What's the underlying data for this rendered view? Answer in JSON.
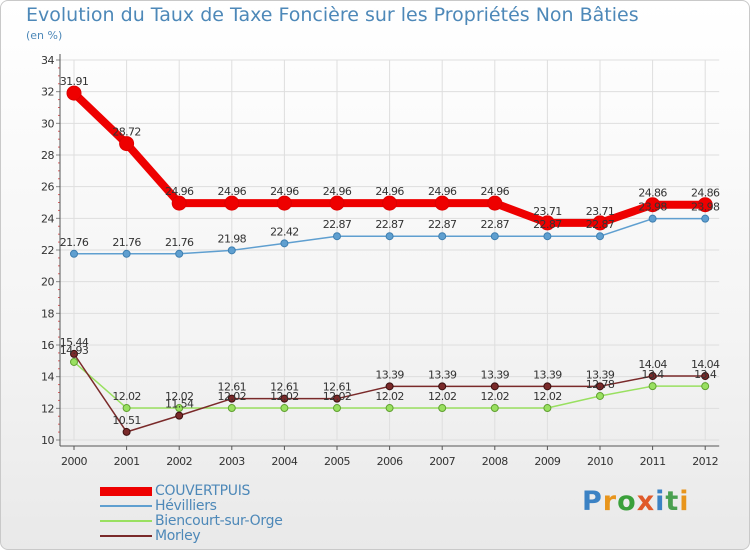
{
  "title": "Evolution du Taux de Taxe Foncière sur les Propriétés Non Bâties",
  "subtitle": "(en %)",
  "logo": {
    "text": "Proxiti"
  },
  "chart_data": {
    "type": "line",
    "x": [
      "2000",
      "2001",
      "2002",
      "2003",
      "2004",
      "2005",
      "2006",
      "2007",
      "2008",
      "2009",
      "2010",
      "2011",
      "2012"
    ],
    "ylim": [
      10,
      34
    ],
    "yticks": [
      10,
      12,
      14,
      16,
      18,
      20,
      22,
      24,
      26,
      28,
      30,
      32,
      34
    ],
    "grid": true,
    "legend_position": "bottom-left",
    "series": [
      {
        "name": "COUVERTPUIS",
        "color": "#ee0000",
        "values": [
          31.91,
          28.72,
          24.96,
          24.96,
          24.96,
          24.96,
          24.96,
          24.96,
          24.96,
          23.71,
          23.71,
          24.86,
          24.86
        ],
        "labels": [
          "31.91",
          "28.72",
          "24.96",
          "24.96",
          "24.96",
          "24.96",
          "24.96",
          "24.96",
          "24.96",
          "23.71",
          "23.71",
          "24.86",
          "24.86"
        ]
      },
      {
        "name": "Hévilliers",
        "color": "#5f9fd0",
        "values": [
          21.76,
          21.76,
          21.76,
          21.98,
          22.42,
          22.87,
          22.87,
          22.87,
          22.87,
          22.87,
          22.87,
          23.98,
          23.98
        ],
        "labels": [
          "21.76",
          "21.76",
          "21.76",
          "21.98",
          "22.42",
          "22.87",
          "22.87",
          "22.87",
          "22.87",
          "22.87",
          "22.87",
          "23.98",
          "23.98"
        ]
      },
      {
        "name": "Biencourt-sur-Orge",
        "color": "#99e060",
        "values": [
          14.93,
          12.02,
          12.02,
          12.02,
          12.02,
          12.02,
          12.02,
          12.02,
          12.02,
          12.02,
          12.78,
          13.4,
          13.4
        ],
        "labels": [
          "14.93",
          "12.02",
          "12.02",
          "12.02",
          "12.02",
          "12.02",
          "12.02",
          "12.02",
          "12.02",
          "12.02",
          "12.78",
          "13.4",
          "13.4"
        ]
      },
      {
        "name": "Morley",
        "color": "#7a2a2a",
        "values": [
          15.44,
          10.51,
          11.54,
          12.61,
          12.61,
          12.61,
          13.39,
          13.39,
          13.39,
          13.39,
          13.39,
          14.04,
          14.04
        ],
        "labels": [
          "15.44",
          "10.51",
          "11.54",
          "12.61",
          "12.61",
          "12.61",
          "13.39",
          "13.39",
          "13.39",
          "13.39",
          "13.39",
          "14.04",
          "14.04"
        ]
      }
    ]
  }
}
